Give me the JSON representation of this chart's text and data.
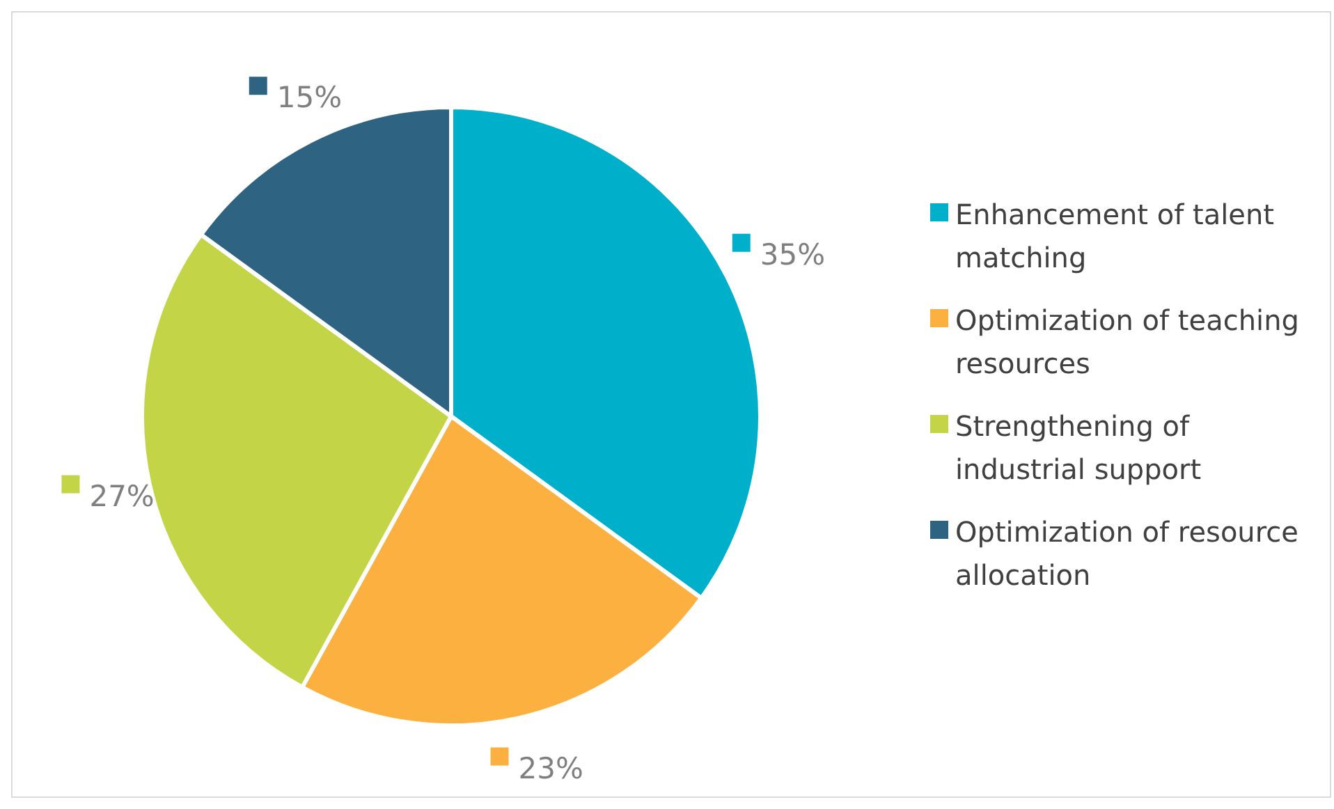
{
  "chart_data": {
    "type": "pie",
    "categories": [
      "Enhancement of talent matching",
      "Optimization of teaching resources",
      "Strengthening of industrial support",
      "Optimization of resource allocation"
    ],
    "values": [
      35,
      23,
      27,
      15
    ],
    "colors": [
      "#00b0cb",
      "#fbb040",
      "#c3d547",
      "#2e6382"
    ],
    "value_labels": [
      "35%",
      "23%",
      "27%",
      "15%"
    ],
    "legend": "right"
  }
}
